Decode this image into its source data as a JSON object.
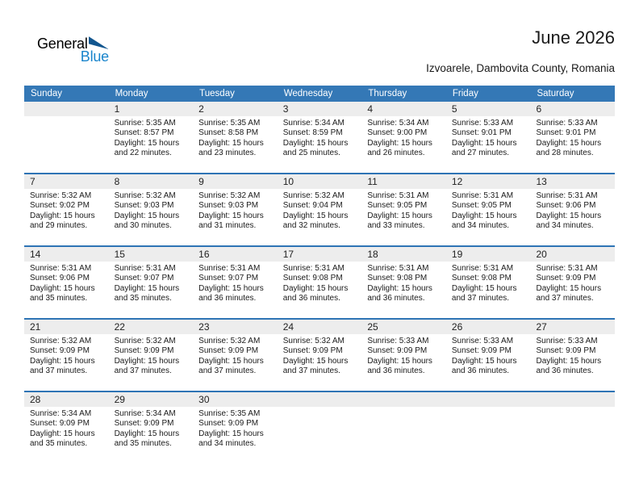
{
  "colors": {
    "header_blue": "#3478b6",
    "separator_blue": "#2e74b5",
    "band_gray": "#ededed",
    "logo_text_blue": "#1a85cc",
    "logo_triangle_blue": "#12568f"
  },
  "logo": {
    "line1": "General",
    "line2": "Blue"
  },
  "title": "June 2026",
  "subtitle": "Izvoarele, Dambovita County, Romania",
  "weekdays": [
    "Sunday",
    "Monday",
    "Tuesday",
    "Wednesday",
    "Thursday",
    "Friday",
    "Saturday"
  ],
  "weeks": [
    [
      {},
      {
        "day": "1",
        "sunrise": "Sunrise: 5:35 AM",
        "sunset": "Sunset: 8:57 PM",
        "daylight": "Daylight: 15 hours and 22 minutes."
      },
      {
        "day": "2",
        "sunrise": "Sunrise: 5:35 AM",
        "sunset": "Sunset: 8:58 PM",
        "daylight": "Daylight: 15 hours and 23 minutes."
      },
      {
        "day": "3",
        "sunrise": "Sunrise: 5:34 AM",
        "sunset": "Sunset: 8:59 PM",
        "daylight": "Daylight: 15 hours and 25 minutes."
      },
      {
        "day": "4",
        "sunrise": "Sunrise: 5:34 AM",
        "sunset": "Sunset: 9:00 PM",
        "daylight": "Daylight: 15 hours and 26 minutes."
      },
      {
        "day": "5",
        "sunrise": "Sunrise: 5:33 AM",
        "sunset": "Sunset: 9:01 PM",
        "daylight": "Daylight: 15 hours and 27 minutes."
      },
      {
        "day": "6",
        "sunrise": "Sunrise: 5:33 AM",
        "sunset": "Sunset: 9:01 PM",
        "daylight": "Daylight: 15 hours and 28 minutes."
      }
    ],
    [
      {
        "day": "7",
        "sunrise": "Sunrise: 5:32 AM",
        "sunset": "Sunset: 9:02 PM",
        "daylight": "Daylight: 15 hours and 29 minutes."
      },
      {
        "day": "8",
        "sunrise": "Sunrise: 5:32 AM",
        "sunset": "Sunset: 9:03 PM",
        "daylight": "Daylight: 15 hours and 30 minutes."
      },
      {
        "day": "9",
        "sunrise": "Sunrise: 5:32 AM",
        "sunset": "Sunset: 9:03 PM",
        "daylight": "Daylight: 15 hours and 31 minutes."
      },
      {
        "day": "10",
        "sunrise": "Sunrise: 5:32 AM",
        "sunset": "Sunset: 9:04 PM",
        "daylight": "Daylight: 15 hours and 32 minutes."
      },
      {
        "day": "11",
        "sunrise": "Sunrise: 5:31 AM",
        "sunset": "Sunset: 9:05 PM",
        "daylight": "Daylight: 15 hours and 33 minutes."
      },
      {
        "day": "12",
        "sunrise": "Sunrise: 5:31 AM",
        "sunset": "Sunset: 9:05 PM",
        "daylight": "Daylight: 15 hours and 34 minutes."
      },
      {
        "day": "13",
        "sunrise": "Sunrise: 5:31 AM",
        "sunset": "Sunset: 9:06 PM",
        "daylight": "Daylight: 15 hours and 34 minutes."
      }
    ],
    [
      {
        "day": "14",
        "sunrise": "Sunrise: 5:31 AM",
        "sunset": "Sunset: 9:06 PM",
        "daylight": "Daylight: 15 hours and 35 minutes."
      },
      {
        "day": "15",
        "sunrise": "Sunrise: 5:31 AM",
        "sunset": "Sunset: 9:07 PM",
        "daylight": "Daylight: 15 hours and 35 minutes."
      },
      {
        "day": "16",
        "sunrise": "Sunrise: 5:31 AM",
        "sunset": "Sunset: 9:07 PM",
        "daylight": "Daylight: 15 hours and 36 minutes."
      },
      {
        "day": "17",
        "sunrise": "Sunrise: 5:31 AM",
        "sunset": "Sunset: 9:08 PM",
        "daylight": "Daylight: 15 hours and 36 minutes."
      },
      {
        "day": "18",
        "sunrise": "Sunrise: 5:31 AM",
        "sunset": "Sunset: 9:08 PM",
        "daylight": "Daylight: 15 hours and 36 minutes."
      },
      {
        "day": "19",
        "sunrise": "Sunrise: 5:31 AM",
        "sunset": "Sunset: 9:08 PM",
        "daylight": "Daylight: 15 hours and 37 minutes."
      },
      {
        "day": "20",
        "sunrise": "Sunrise: 5:31 AM",
        "sunset": "Sunset: 9:09 PM",
        "daylight": "Daylight: 15 hours and 37 minutes."
      }
    ],
    [
      {
        "day": "21",
        "sunrise": "Sunrise: 5:32 AM",
        "sunset": "Sunset: 9:09 PM",
        "daylight": "Daylight: 15 hours and 37 minutes."
      },
      {
        "day": "22",
        "sunrise": "Sunrise: 5:32 AM",
        "sunset": "Sunset: 9:09 PM",
        "daylight": "Daylight: 15 hours and 37 minutes."
      },
      {
        "day": "23",
        "sunrise": "Sunrise: 5:32 AM",
        "sunset": "Sunset: 9:09 PM",
        "daylight": "Daylight: 15 hours and 37 minutes."
      },
      {
        "day": "24",
        "sunrise": "Sunrise: 5:32 AM",
        "sunset": "Sunset: 9:09 PM",
        "daylight": "Daylight: 15 hours and 37 minutes."
      },
      {
        "day": "25",
        "sunrise": "Sunrise: 5:33 AM",
        "sunset": "Sunset: 9:09 PM",
        "daylight": "Daylight: 15 hours and 36 minutes."
      },
      {
        "day": "26",
        "sunrise": "Sunrise: 5:33 AM",
        "sunset": "Sunset: 9:09 PM",
        "daylight": "Daylight: 15 hours and 36 minutes."
      },
      {
        "day": "27",
        "sunrise": "Sunrise: 5:33 AM",
        "sunset": "Sunset: 9:09 PM",
        "daylight": "Daylight: 15 hours and 36 minutes."
      }
    ],
    [
      {
        "day": "28",
        "sunrise": "Sunrise: 5:34 AM",
        "sunset": "Sunset: 9:09 PM",
        "daylight": "Daylight: 15 hours and 35 minutes."
      },
      {
        "day": "29",
        "sunrise": "Sunrise: 5:34 AM",
        "sunset": "Sunset: 9:09 PM",
        "daylight": "Daylight: 15 hours and 35 minutes."
      },
      {
        "day": "30",
        "sunrise": "Sunrise: 5:35 AM",
        "sunset": "Sunset: 9:09 PM",
        "daylight": "Daylight: 15 hours and 34 minutes."
      },
      {},
      {},
      {},
      {}
    ]
  ]
}
